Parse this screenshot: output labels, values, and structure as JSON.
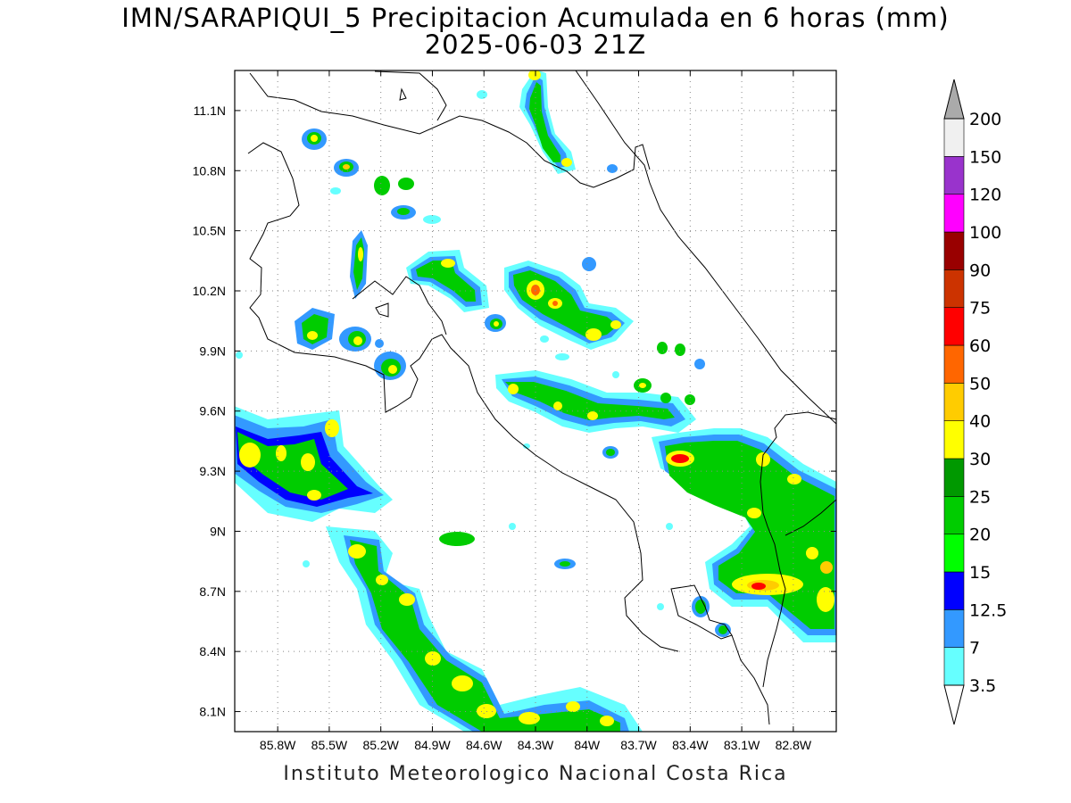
{
  "title": {
    "line1": "IMN/SARAPIQUI_5 Precipitacion Acumulada en 6 horas (mm)",
    "line2": "2025-06-03 21Z"
  },
  "footer": "Instituto Meteorologico Nacional Costa Rica",
  "map": {
    "lon_range": [
      -86.05,
      -82.55
    ],
    "lat_range": [
      8.0,
      11.3
    ],
    "lon_ticks": [
      "85.8W",
      "85.5W",
      "85.2W",
      "84.9W",
      "84.6W",
      "84.3W",
      "84W",
      "83.7W",
      "83.4W",
      "83.1W",
      "82.8W"
    ],
    "lat_ticks": [
      "11.1N",
      "10.8N",
      "10.5N",
      "10.2N",
      "9.9N",
      "9.6N",
      "9.3N",
      "9N",
      "8.7N",
      "8.4N",
      "8.1N"
    ],
    "grid": "dotted"
  },
  "colorbar": {
    "orientation": "vertical",
    "extend": "both",
    "levels": [
      "3.5",
      "7",
      "12.5",
      "15",
      "20",
      "25",
      "30",
      "40",
      "50",
      "60",
      "75",
      "90",
      "100",
      "120",
      "150",
      "200"
    ],
    "colors": [
      "#66ffff",
      "#3399ff",
      "#0000ff",
      "#00ff00",
      "#00cc00",
      "#009900",
      "#ffff00",
      "#ffcc00",
      "#ff6600",
      "#ff0000",
      "#cc3300",
      "#990000",
      "#ff00ff",
      "#9933cc",
      "#f0f0f0"
    ],
    "above_color": "#aaaaaa",
    "below_color": "#ffffff"
  },
  "colors": {
    "coast": "#000000",
    "grid": "#888888"
  }
}
